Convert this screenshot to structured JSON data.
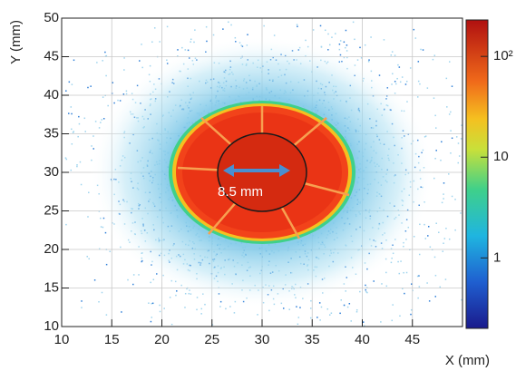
{
  "chart_data": {
    "type": "heatmap",
    "xlabel": "X (mm)",
    "ylabel": "Y (mm)",
    "xlim": [
      10,
      50
    ],
    "ylim": [
      10,
      50
    ],
    "xticks": [
      10,
      15,
      20,
      25,
      30,
      35,
      40,
      45
    ],
    "yticks": [
      10,
      15,
      20,
      25,
      30,
      35,
      40,
      45,
      50
    ],
    "grid": true,
    "zscale": "log",
    "zlim": [
      0.2,
      230
    ],
    "zticks": [
      1,
      10,
      {
        "value": 100,
        "label": "10²"
      }
    ],
    "annotation": "8.5 mm"
  }
}
